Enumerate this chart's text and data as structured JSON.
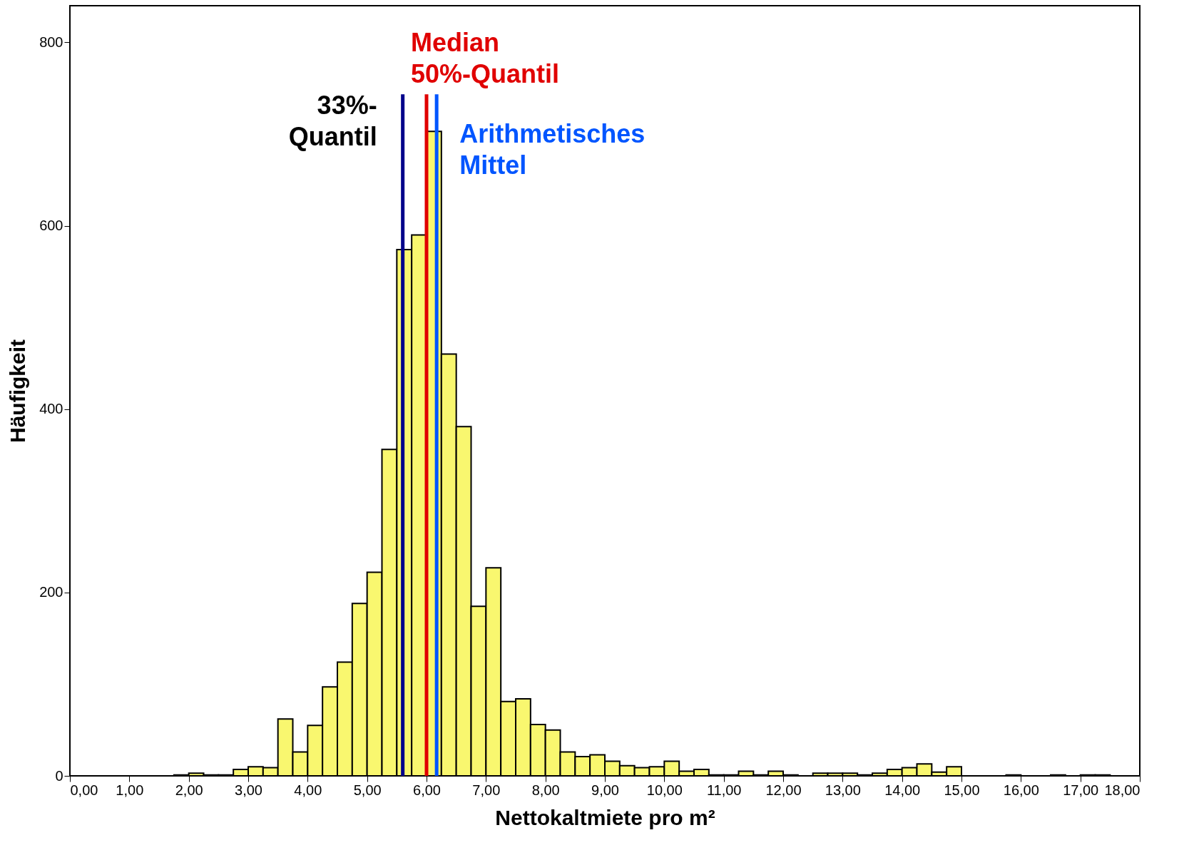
{
  "chart_data": {
    "type": "histogram",
    "xlabel": "Nettokaltmiete pro m²",
    "ylabel": "Häufigkeit",
    "color": "#f9f76f",
    "bins": [
      1.75,
      2.0,
      2.25,
      2.5,
      2.75,
      3.0,
      3.25,
      3.5,
      3.75,
      4.0,
      4.25,
      4.5,
      4.75,
      5.0,
      5.25,
      5.5,
      5.75,
      6.0,
      6.25,
      6.5,
      6.75,
      7.0,
      7.25,
      7.5,
      7.75,
      8.0,
      8.25,
      8.5,
      8.75,
      9.0,
      9.25,
      9.5,
      9.75,
      10.0,
      10.25,
      10.5,
      10.75,
      11.0,
      11.25,
      11.5,
      11.75,
      12.0,
      12.25,
      12.5,
      12.75,
      13.0,
      13.25,
      13.5,
      13.75,
      14.0,
      14.25,
      14.5,
      14.75,
      15.0,
      15.25,
      15.5,
      15.75,
      16.0,
      16.25,
      16.5,
      16.75,
      17.0,
      17.25,
      17.5
    ],
    "values": [
      1,
      3,
      1,
      1,
      7,
      10,
      9,
      62,
      26,
      55,
      97,
      124,
      188,
      222,
      356,
      574,
      590,
      703,
      460,
      381,
      185,
      227,
      81,
      84,
      56,
      50,
      26,
      21,
      23,
      16,
      11,
      9,
      10,
      16,
      5,
      7,
      1,
      1,
      5,
      1,
      5,
      1,
      0,
      3,
      3,
      3,
      1,
      3,
      7,
      9,
      13,
      4,
      10,
      0,
      0,
      0,
      1,
      0,
      0,
      1,
      0,
      1,
      1
    ],
    "xlim": [
      0,
      18
    ],
    "ylim": [
      0,
      840
    ],
    "xticks": [
      {
        "value": 0,
        "label": "0,00"
      },
      {
        "value": 1,
        "label": "1,00"
      },
      {
        "value": 2,
        "label": "2,00"
      },
      {
        "value": 3,
        "label": "3,00"
      },
      {
        "value": 4,
        "label": "4,00"
      },
      {
        "value": 5,
        "label": "5,00"
      },
      {
        "value": 6,
        "label": "6,00"
      },
      {
        "value": 7,
        "label": "7,00"
      },
      {
        "value": 8,
        "label": "8,00"
      },
      {
        "value": 9,
        "label": "9,00"
      },
      {
        "value": 10,
        "label": "10,00"
      },
      {
        "value": 11,
        "label": "11,00"
      },
      {
        "value": 12,
        "label": "12,00"
      },
      {
        "value": 13,
        "label": "13,00"
      },
      {
        "value": 14,
        "label": "14,00"
      },
      {
        "value": 15,
        "label": "15,00"
      },
      {
        "value": 16,
        "label": "16,00"
      },
      {
        "value": 17,
        "label": "17,00"
      },
      {
        "value": 18,
        "label": "18,00"
      }
    ],
    "yticks": [
      0,
      200,
      400,
      600,
      800
    ],
    "grid": false,
    "ref_lines": [
      {
        "axis": "x",
        "value": 5.6,
        "label": "33%-\nQuantil",
        "color": "#00008b"
      },
      {
        "axis": "x",
        "value": 6.0,
        "label": "Median\n50%-Quantil",
        "color": "#e00000"
      },
      {
        "axis": "x",
        "value": 6.17,
        "label": "Arithmetisches\nMittel",
        "color": "#0055ff"
      }
    ]
  }
}
